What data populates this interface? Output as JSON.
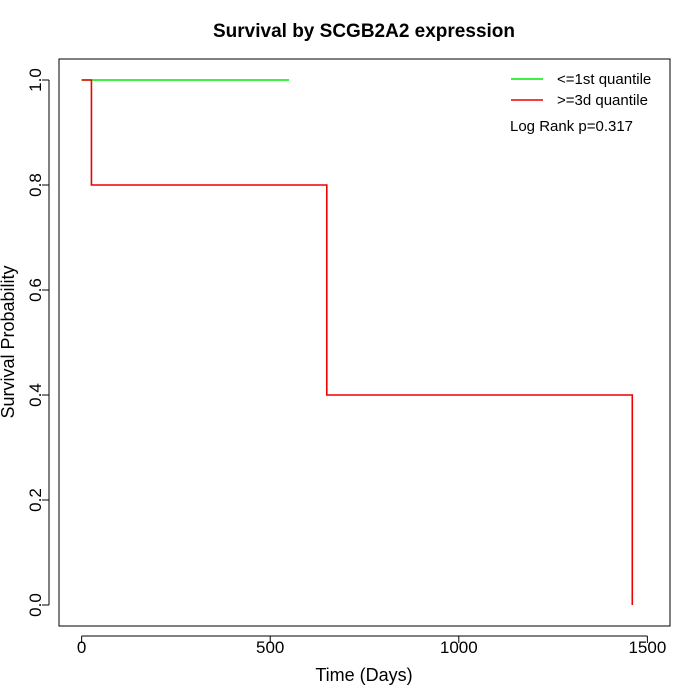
{
  "chart_data": {
    "type": "line",
    "subtype": "kaplan-meier-step",
    "title": "Survival by SCGB2A2 expression",
    "xlabel": "Time (Days)",
    "ylabel": "Survival Probability",
    "xlim": [
      0,
      1500
    ],
    "ylim": [
      0,
      1
    ],
    "xticks": [
      0,
      500,
      1000,
      1500
    ],
    "xtick_labels": [
      "0",
      "500",
      "1000",
      "1500"
    ],
    "yticks": [
      0,
      0.2,
      0.4,
      0.6,
      0.8,
      1
    ],
    "ytick_labels": [
      "0.0",
      "0.2",
      "0.4",
      "0.6",
      "0.8",
      "1.0"
    ],
    "grid": false,
    "legend_position": "top-right",
    "series": [
      {
        "name": "<=1st quantile",
        "color": "#00ee00",
        "x": [
          0,
          550
        ],
        "y": [
          1.0,
          1.0
        ]
      },
      {
        "name": ">=3d quantile",
        "color": "#ee0000",
        "x": [
          0,
          26,
          650,
          1460
        ],
        "y": [
          1.0,
          0.8,
          0.4,
          0.0
        ]
      }
    ],
    "annotation": "Log Rank p=0.317"
  }
}
